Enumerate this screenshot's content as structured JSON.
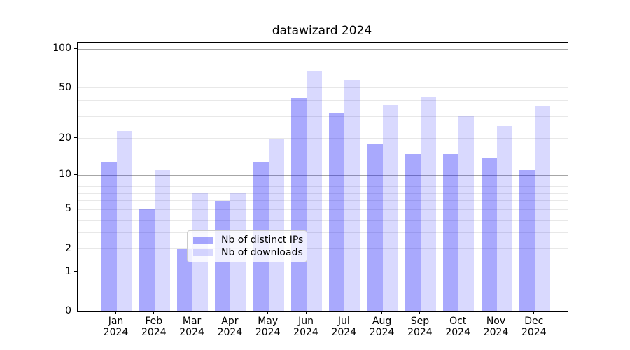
{
  "chart_data": {
    "type": "bar",
    "title": "datawizard 2024",
    "categories": [
      "Jan",
      "Feb",
      "Mar",
      "Apr",
      "May",
      "Jun",
      "Jul",
      "Aug",
      "Sep",
      "Oct",
      "Nov",
      "Dec"
    ],
    "year_label": "2024",
    "series": [
      {
        "name": "Nb of distinct IPs",
        "color": "#a9a9fb",
        "alpha_color": "rgba(10,10,250,0.35)",
        "values": [
          13,
          5,
          2,
          6,
          13,
          42,
          32,
          18,
          15,
          15,
          14,
          11
        ]
      },
      {
        "name": "Nb of downloads",
        "color": "#d9d9fc",
        "alpha_color": "rgba(10,10,250,0.155)",
        "values": [
          23,
          11,
          7,
          7,
          20,
          67,
          58,
          37,
          43,
          30,
          25,
          36
        ]
      }
    ],
    "yticks": [
      0,
      1,
      2,
      5,
      10,
      20,
      50,
      100
    ],
    "major_gridlines": [
      1,
      10,
      100
    ],
    "minor_gridlines": [
      2,
      3,
      4,
      5,
      6,
      7,
      8,
      9,
      20,
      30,
      40,
      50,
      60,
      70,
      80,
      90
    ],
    "scale": "log1p",
    "ylim": [
      0,
      113
    ],
    "grid": true,
    "legend_position": "lower-center",
    "colors": {
      "major_grid": "#a6a6a6",
      "minor_grid": "#e8e8e8",
      "axis": "#000000",
      "text": "#000000",
      "background": "#ffffff"
    }
  }
}
